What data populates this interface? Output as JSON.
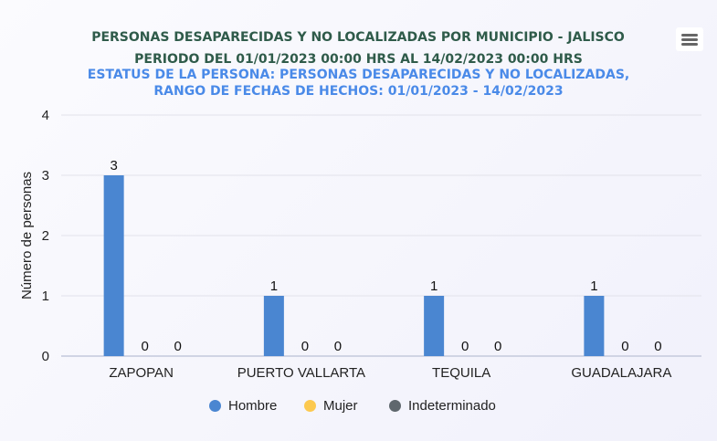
{
  "chart_data": {
    "type": "bar",
    "title": "PERSONAS DESAPARECIDAS Y NO LOCALIZADAS POR MUNICIPIO - JALISCO",
    "subtitles": [
      "PERIODO DEL 01/01/2023 00:00 HRS AL 14/02/2023 00:00 HRS",
      "ESTATUS DE LA PERSONA: PERSONAS DESAPARECIDAS Y NO LOCALIZADAS,",
      "RANGO DE FECHAS DE HECHOS: 01/01/2023 - 14/02/2023"
    ],
    "categories": [
      "ZAPOPAN",
      "PUERTO VALLARTA",
      "TEQUILA",
      "GUADALAJARA"
    ],
    "series": [
      {
        "name": "Hombre",
        "color": "#4a86d1",
        "values": [
          3,
          1,
          1,
          1
        ]
      },
      {
        "name": "Mujer",
        "color": "#fcc94f",
        "values": [
          0,
          0,
          0,
          0
        ]
      },
      {
        "name": "Indeterminado",
        "color": "#5f676d",
        "values": [
          0,
          0,
          0,
          0
        ]
      }
    ],
    "xlabel": "",
    "ylabel": "Número de personas",
    "ylim": [
      0,
      4
    ],
    "yticks": [
      "0",
      "1",
      "2",
      "3",
      "4"
    ],
    "grid": true,
    "legend_position": "bottom-center"
  }
}
